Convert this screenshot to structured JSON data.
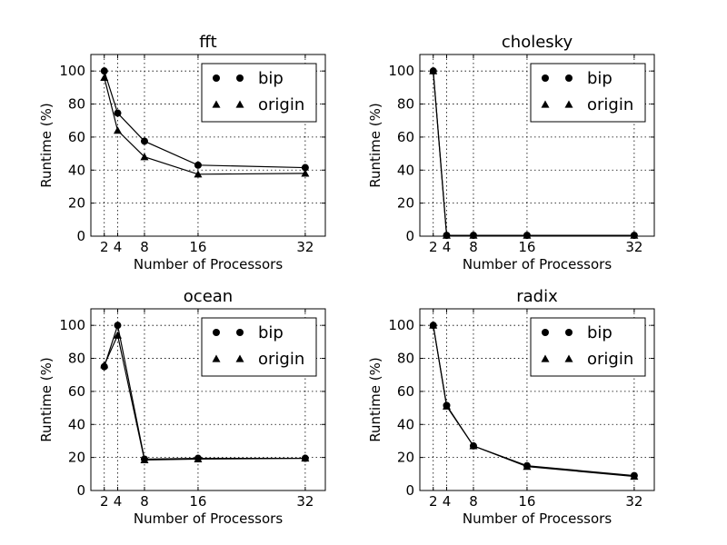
{
  "chart_data": [
    {
      "type": "line",
      "title": "fft",
      "xlabel": "Number of Processors",
      "ylabel": "Runtime (%)",
      "x": [
        2,
        4,
        8,
        16,
        32
      ],
      "xticks": [
        "2",
        "4",
        "8",
        "16",
        "32"
      ],
      "xlim": [
        0,
        35
      ],
      "yticks": [
        "0",
        "20",
        "40",
        "60",
        "80",
        "100"
      ],
      "ylim": [
        0,
        110
      ],
      "grid": true,
      "legend_position": "top-right",
      "series": [
        {
          "name": "bip",
          "marker": "circle",
          "values": [
            100,
            74.5,
            57.5,
            43,
            41.5
          ]
        },
        {
          "name": "origin",
          "marker": "triangle",
          "values": [
            96,
            64,
            48,
            37.5,
            38
          ]
        }
      ]
    },
    {
      "type": "line",
      "title": "cholesky",
      "xlabel": "Number of Processors",
      "ylabel": "Runtime (%)",
      "x": [
        2,
        4,
        8,
        16,
        32
      ],
      "xticks": [
        "2",
        "4",
        "8",
        "16",
        "32"
      ],
      "xlim": [
        0,
        35
      ],
      "yticks": [
        "0",
        "20",
        "40",
        "60",
        "80",
        "100"
      ],
      "ylim": [
        0,
        110
      ],
      "grid": true,
      "legend_position": "top-right",
      "series": [
        {
          "name": "bip",
          "marker": "circle",
          "values": [
            100,
            0.5,
            0.5,
            0.5,
            0.5
          ]
        },
        {
          "name": "origin",
          "marker": "triangle",
          "values": [
            100,
            0.5,
            0.5,
            0.5,
            0.5
          ]
        }
      ]
    },
    {
      "type": "line",
      "title": "ocean",
      "xlabel": "Number of Processors",
      "ylabel": "Runtime (%)",
      "x": [
        2,
        4,
        8,
        16,
        32
      ],
      "xticks": [
        "2",
        "4",
        "8",
        "16",
        "32"
      ],
      "xlim": [
        0,
        35
      ],
      "yticks": [
        "0",
        "20",
        "40",
        "60",
        "80",
        "100"
      ],
      "ylim": [
        0,
        110
      ],
      "grid": true,
      "legend_position": "top-right",
      "series": [
        {
          "name": "bip",
          "marker": "circle",
          "values": [
            75,
            100,
            19,
            19.5,
            19.5
          ]
        },
        {
          "name": "origin",
          "marker": "triangle",
          "values": [
            76,
            94,
            18.5,
            19,
            19.5
          ]
        }
      ]
    },
    {
      "type": "line",
      "title": "radix",
      "xlabel": "Number of Processors",
      "ylabel": "Runtime (%)",
      "x": [
        2,
        4,
        8,
        16,
        32
      ],
      "xticks": [
        "2",
        "4",
        "8",
        "16",
        "32"
      ],
      "xlim": [
        0,
        35
      ],
      "yticks": [
        "0",
        "20",
        "40",
        "60",
        "80",
        "100"
      ],
      "ylim": [
        0,
        110
      ],
      "grid": true,
      "legend_position": "top-right",
      "series": [
        {
          "name": "bip",
          "marker": "circle",
          "values": [
            100,
            51.5,
            27,
            15,
            9
          ]
        },
        {
          "name": "origin",
          "marker": "triangle",
          "values": [
            100,
            51,
            27,
            14.5,
            8.5
          ]
        }
      ]
    }
  ]
}
